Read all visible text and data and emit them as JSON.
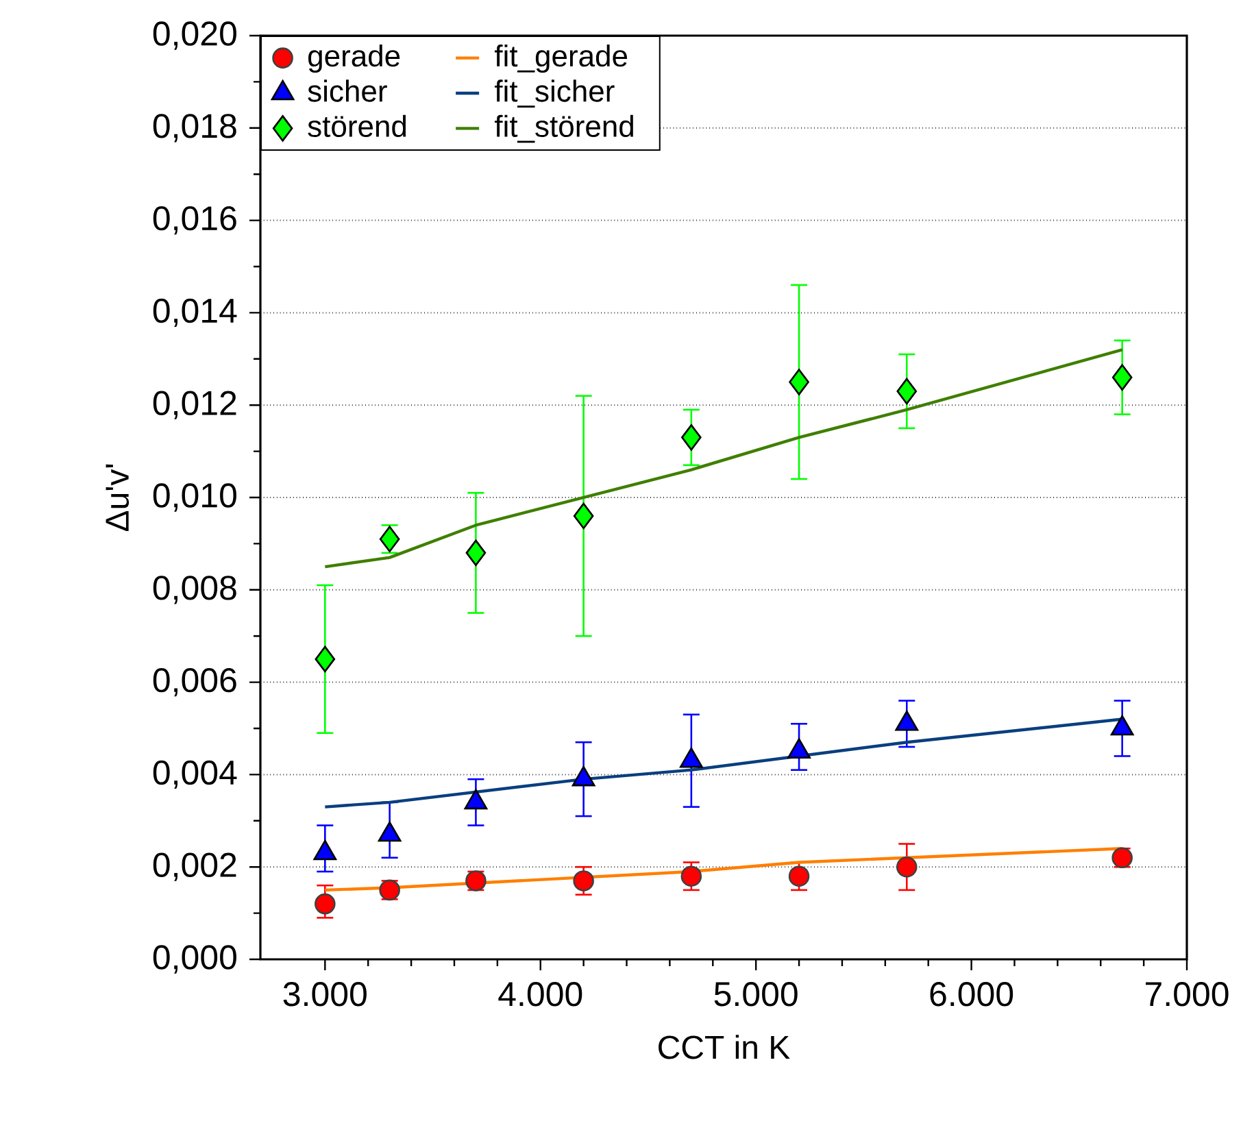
{
  "chart_data": {
    "type": "scatter",
    "xlabel": "CCT in K",
    "ylabel": "Δu'v'",
    "xlim": [
      2700,
      7000
    ],
    "ylim": [
      0,
      0.02
    ],
    "xticks": [
      {
        "value": 3000,
        "label": "3.000"
      },
      {
        "value": 4000,
        "label": "4.000"
      },
      {
        "value": 5000,
        "label": "5.000"
      },
      {
        "value": 6000,
        "label": "6.000"
      },
      {
        "value": 7000,
        "label": "7.000"
      }
    ],
    "yticks": [
      {
        "value": 0,
        "label": "0,000"
      },
      {
        "value": 0.002,
        "label": "0,002"
      },
      {
        "value": 0.004,
        "label": "0,004"
      },
      {
        "value": 0.006,
        "label": "0,006"
      },
      {
        "value": 0.008,
        "label": "0,008"
      },
      {
        "value": 0.01,
        "label": "0,010"
      },
      {
        "value": 0.012,
        "label": "0,012"
      },
      {
        "value": 0.014,
        "label": "0,014"
      },
      {
        "value": 0.016,
        "label": "0,016"
      },
      {
        "value": 0.018,
        "label": "0,018"
      },
      {
        "value": 0.02,
        "label": "0,020"
      }
    ],
    "grid": "y",
    "legend": "top left",
    "x": [
      3000,
      3300,
      3700,
      4200,
      4700,
      5200,
      5700,
      6700
    ],
    "series": [
      {
        "name": "gerade",
        "marker": "circle",
        "color": "#ff0000",
        "values": [
          0.0012,
          0.0015,
          0.0017,
          0.0017,
          0.0018,
          0.0018,
          0.002,
          0.0022
        ],
        "errors": [
          [
            0.0009,
            0.0016
          ],
          [
            0.0013,
            0.0017
          ],
          [
            0.0015,
            0.0019
          ],
          [
            0.0014,
            0.002
          ],
          [
            0.0015,
            0.0021
          ],
          [
            0.0015,
            0.0021
          ],
          [
            0.0015,
            0.0025
          ],
          [
            0.002,
            0.0024
          ]
        ]
      },
      {
        "name": "sicher",
        "marker": "triangle",
        "color": "#0000ff",
        "values": [
          0.0023,
          0.0027,
          0.0034,
          0.0039,
          0.0043,
          0.0045,
          0.0051,
          0.005
        ],
        "errors": [
          [
            0.0019,
            0.0029
          ],
          [
            0.0022,
            0.0034
          ],
          [
            0.0029,
            0.0039
          ],
          [
            0.0031,
            0.0047
          ],
          [
            0.0033,
            0.0053
          ],
          [
            0.0041,
            0.0051
          ],
          [
            0.0046,
            0.0056
          ],
          [
            0.0044,
            0.0056
          ]
        ]
      },
      {
        "name": "störend",
        "marker": "diamond",
        "color": "#00ff00",
        "values": [
          0.0065,
          0.0091,
          0.0088,
          0.0096,
          0.0113,
          0.0125,
          0.0123,
          0.0126
        ],
        "errors": [
          [
            0.0049,
            0.0081
          ],
          [
            0.0088,
            0.0094
          ],
          [
            0.0075,
            0.0101
          ],
          [
            0.007,
            0.0122
          ],
          [
            0.0107,
            0.0119
          ],
          [
            0.0104,
            0.0146
          ],
          [
            0.0115,
            0.0131
          ],
          [
            0.0118,
            0.0134
          ]
        ]
      },
      {
        "name": "fit_gerade",
        "type": "line",
        "color": "#ff7f00",
        "x": [
          3000,
          3300,
          4700,
          5200,
          6700
        ],
        "values": [
          0.0015,
          0.00155,
          0.0019,
          0.0021,
          0.0024
        ]
      },
      {
        "name": "fit_sicher",
        "type": "line",
        "color": "#0a3f7f",
        "x": [
          3000,
          3300,
          4200,
          4700,
          5200,
          5700,
          6700
        ],
        "values": [
          0.0033,
          0.0034,
          0.0039,
          0.0041,
          0.0044,
          0.0047,
          0.0052
        ]
      },
      {
        "name": "fit_störend",
        "type": "line",
        "color": "#3f7f00",
        "x": [
          3000,
          3300,
          3700,
          4700,
          5200,
          5700,
          6700
        ],
        "values": [
          0.0085,
          0.0087,
          0.0094,
          0.0106,
          0.0113,
          0.0119,
          0.0132
        ]
      }
    ]
  }
}
